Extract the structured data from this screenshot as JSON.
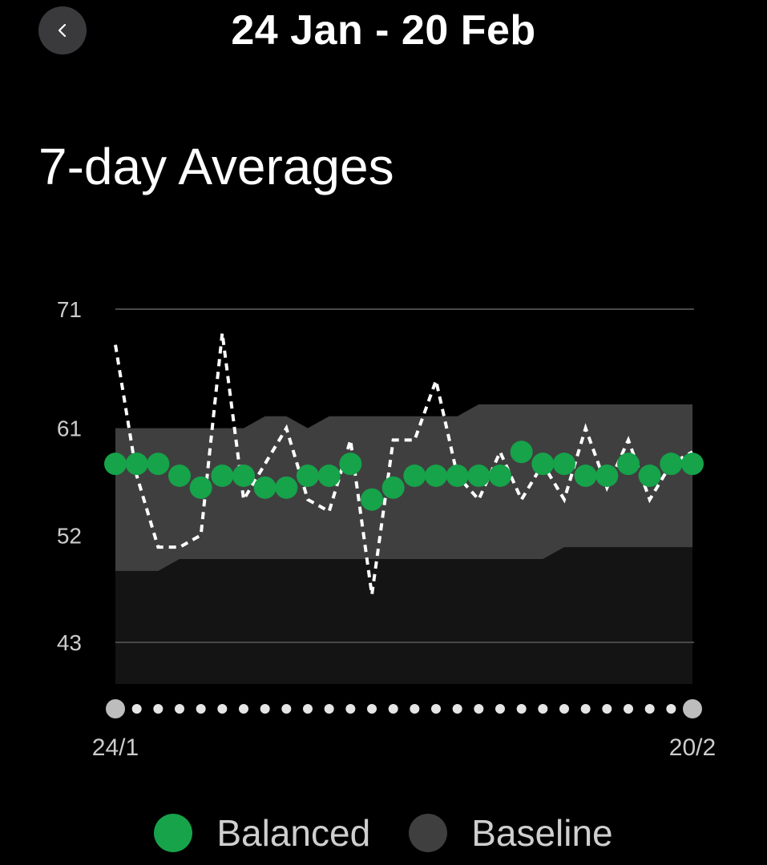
{
  "header": {
    "back_icon": "chevron-left-icon",
    "title": "24 Jan - 20 Feb"
  },
  "section": {
    "title": "7-day Averages"
  },
  "colors": {
    "balanced": "#16a34a",
    "baseline": "#3f3f3f",
    "baseline_lower": "#141414",
    "line": "#ffffff",
    "grid": "#4a4a4a",
    "tick_text": "#cccccc"
  },
  "legend": [
    {
      "label": "Balanced",
      "color": "#16a34a"
    },
    {
      "label": "Baseline",
      "color": "#3f3f3f"
    }
  ],
  "chart_data": {
    "type": "line",
    "ylim": [
      39.5,
      71
    ],
    "yticks": [
      71,
      61,
      52,
      43
    ],
    "x_start_label": "24/1",
    "x_end_label": "20/2",
    "x_count": 28,
    "grid": true,
    "legend_position": "bottom",
    "series": [
      {
        "name": "Balanced",
        "style": "dots",
        "values": [
          58,
          58,
          58,
          57,
          56,
          57,
          57,
          56,
          56,
          57,
          57,
          58,
          55,
          56,
          57,
          57,
          57,
          57,
          57,
          59,
          58,
          58,
          57,
          57,
          58,
          57,
          58,
          58
        ]
      },
      {
        "style": "dashed-line",
        "values": [
          68,
          57,
          51,
          51,
          52,
          69,
          55,
          58,
          61,
          55,
          54,
          60,
          47,
          60,
          60,
          65,
          57,
          55,
          59,
          55,
          58,
          55,
          61,
          56,
          60,
          55,
          58,
          59
        ]
      }
    ],
    "baseline_band": {
      "upper": [
        61,
        61,
        61,
        61,
        61,
        61,
        61,
        62,
        62,
        61,
        62,
        62,
        62,
        62,
        62,
        62,
        62,
        63,
        63,
        63,
        63,
        63,
        63,
        63,
        63,
        63,
        63,
        63
      ],
      "lower": [
        49,
        49,
        49,
        50,
        50,
        50,
        50,
        50,
        50,
        50,
        50,
        50,
        50,
        50,
        50,
        50,
        50,
        50,
        50,
        50,
        50,
        51,
        51,
        51,
        51,
        51,
        51,
        51
      ]
    }
  }
}
